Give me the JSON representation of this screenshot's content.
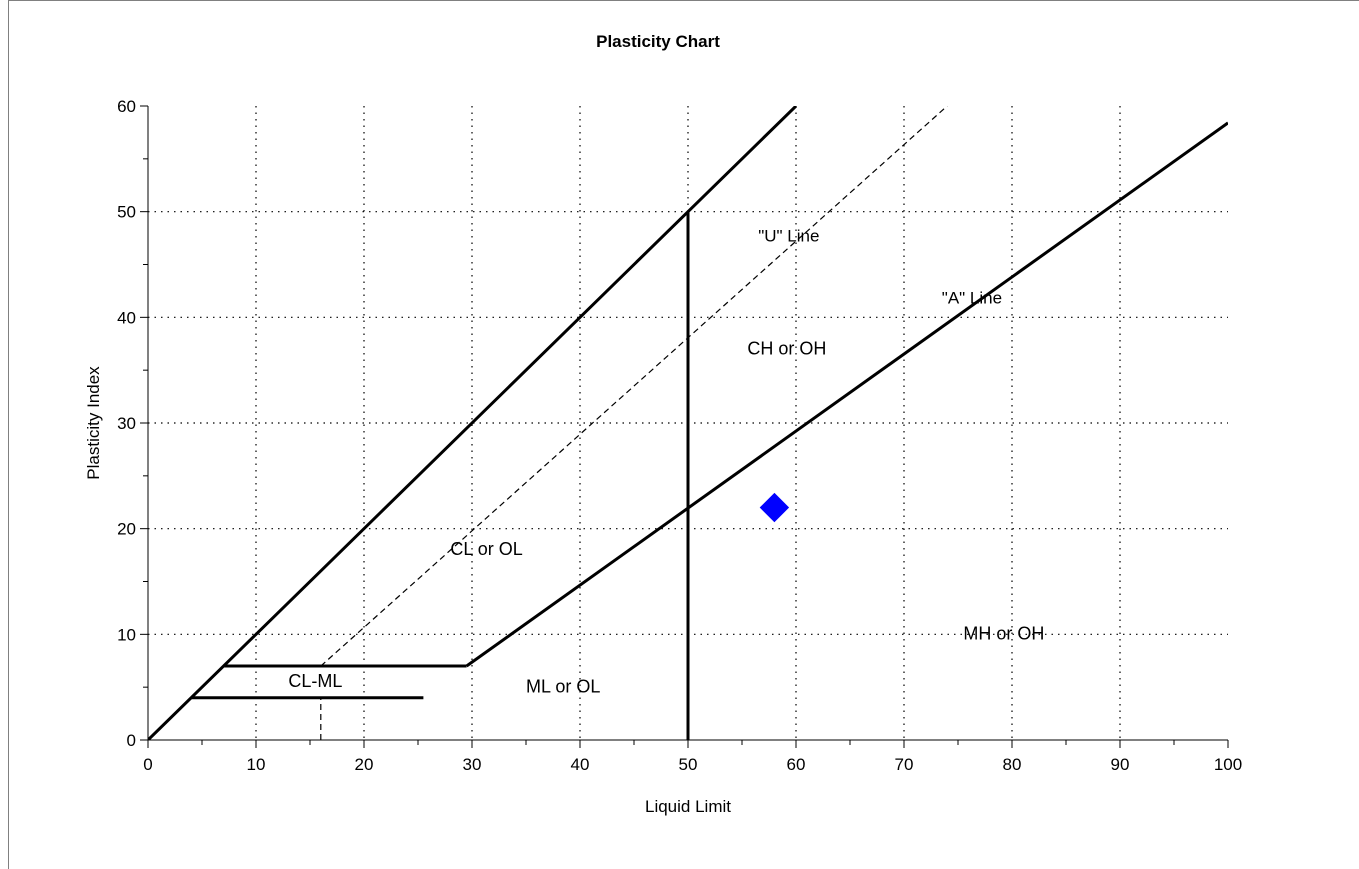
{
  "chart_data": {
    "type": "scatter",
    "title": "Plasticity Chart",
    "xlabel": "Liquid Limit",
    "ylabel": "Plasticity Index",
    "xlim": [
      0,
      100
    ],
    "ylim": [
      0,
      60
    ],
    "xticks": [
      0,
      10,
      20,
      30,
      40,
      50,
      60,
      70,
      80,
      90,
      100
    ],
    "yticks": [
      0,
      10,
      20,
      30,
      40,
      50,
      60
    ],
    "grid": true,
    "reference_lines": [
      {
        "name": "\"U\" Line",
        "style": "solid",
        "points": [
          [
            0,
            0
          ],
          [
            60,
            60
          ]
        ]
      },
      {
        "name": "\"U\" Line dashed",
        "style": "dashed",
        "points": [
          [
            16,
            7
          ],
          [
            74,
            60
          ]
        ]
      },
      {
        "name": "\"A\" Line",
        "style": "solid",
        "points": [
          [
            29.5,
            7
          ],
          [
            100,
            58.4
          ]
        ]
      },
      {
        "name": "LL 50 divider",
        "style": "solid",
        "points": [
          [
            50,
            0
          ],
          [
            50,
            50
          ]
        ]
      },
      {
        "name": "CL-ML upper",
        "style": "solid",
        "points": [
          [
            7,
            7
          ],
          [
            29.5,
            7
          ]
        ]
      },
      {
        "name": "CL-ML lower",
        "style": "solid",
        "points": [
          [
            4,
            4
          ],
          [
            25.5,
            4
          ]
        ]
      },
      {
        "name": "CL-ML dashed",
        "style": "dashed",
        "points": [
          [
            16,
            0
          ],
          [
            16,
            4
          ]
        ]
      }
    ],
    "line_labels": [
      {
        "text": "\"U\" Line",
        "x": 56.5,
        "y": 47.2
      },
      {
        "text": "\"A\" Line",
        "x": 73.5,
        "y": 41.3
      }
    ],
    "zone_labels": [
      {
        "text": "CH or OH",
        "x": 55.5,
        "y": 36.5
      },
      {
        "text": "CL or OL",
        "x": 28,
        "y": 17.5
      },
      {
        "text": "CL-ML",
        "x": 13,
        "y": 5
      },
      {
        "text": "ML or OL",
        "x": 35,
        "y": 4.5
      },
      {
        "text": "MH or OH",
        "x": 75.5,
        "y": 9.5
      }
    ],
    "series": [
      {
        "points": [
          {
            "x": 58,
            "y": 22
          }
        ],
        "color": "#0000ff",
        "marker": "diamond"
      }
    ]
  }
}
